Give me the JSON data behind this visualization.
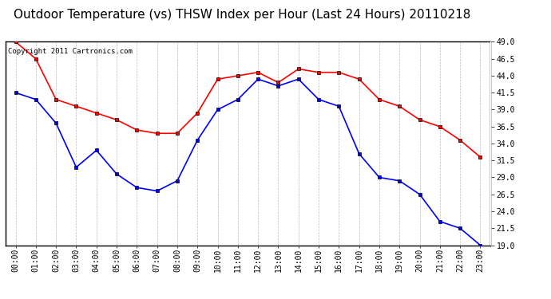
{
  "title": "Outdoor Temperature (vs) THSW Index per Hour (Last 24 Hours) 20110218",
  "copyright": "Copyright 2011 Cartronics.com",
  "hours": [
    "00:00",
    "01:00",
    "02:00",
    "03:00",
    "04:00",
    "05:00",
    "06:00",
    "07:00",
    "08:00",
    "09:00",
    "10:00",
    "11:00",
    "12:00",
    "13:00",
    "14:00",
    "15:00",
    "16:00",
    "17:00",
    "18:00",
    "19:00",
    "20:00",
    "21:00",
    "22:00",
    "23:00"
  ],
  "temp": [
    41.5,
    40.5,
    37.0,
    30.5,
    33.0,
    29.5,
    27.5,
    27.0,
    28.5,
    34.5,
    39.0,
    40.5,
    43.5,
    42.5,
    43.5,
    40.5,
    39.5,
    32.5,
    29.0,
    28.5,
    26.5,
    22.5,
    21.5,
    19.0
  ],
  "thsw": [
    49.0,
    46.5,
    40.5,
    39.5,
    38.5,
    37.5,
    36.0,
    35.5,
    35.5,
    38.5,
    43.5,
    44.0,
    44.5,
    43.0,
    45.0,
    44.5,
    44.5,
    43.5,
    40.5,
    39.5,
    37.5,
    36.5,
    34.5,
    32.0
  ],
  "temp_color": "#0000ff",
  "thsw_color": "#ff0000",
  "bg_color": "#ffffff",
  "grid_color": "#aaaaaa",
  "ylim": [
    19.0,
    49.0
  ],
  "yticks": [
    19.0,
    21.5,
    24.0,
    26.5,
    29.0,
    31.5,
    34.0,
    36.5,
    39.0,
    41.5,
    44.0,
    46.5,
    49.0
  ],
  "title_fontsize": 11,
  "copyright_fontsize": 6.5,
  "tick_fontsize": 7,
  "marker_size": 3.5
}
